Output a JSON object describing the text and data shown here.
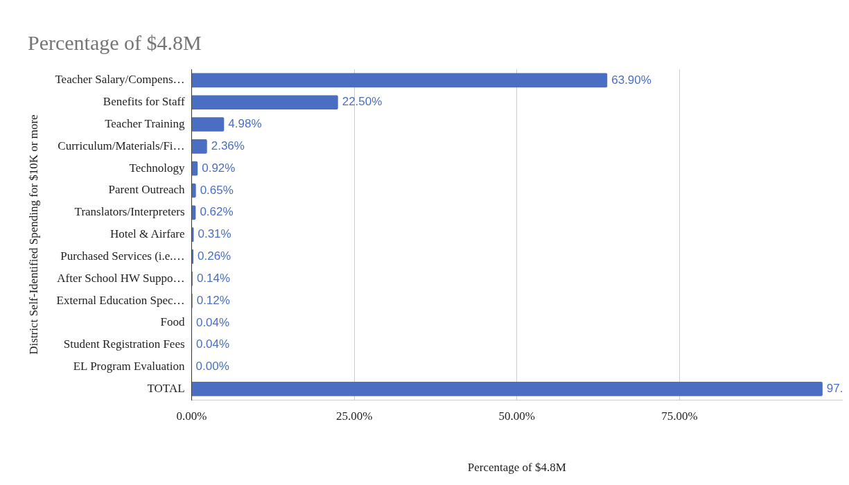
{
  "chart_data": {
    "type": "bar",
    "orientation": "horizontal",
    "title": "Percentage of $4.8M",
    "xlabel": "Percentage of $4.8M",
    "ylabel": "District Self-Identified Spending for $10K or more",
    "categories": [
      "Teacher Salary/Compens…",
      "Benefits for Staff",
      "Teacher Training",
      "Curriculum/Materials/Fi…",
      "Technology",
      "Parent Outreach",
      "Translators/Interpreters",
      "Hotel & Airfare",
      "Purchased Services (i.e.…",
      "After School HW Suppo…",
      "External Education Spec…",
      "Food",
      "Student Registration Fees",
      "EL Program Evaluation",
      "TOTAL"
    ],
    "values": [
      63.9,
      22.5,
      4.98,
      2.36,
      0.92,
      0.65,
      0.62,
      0.31,
      0.26,
      0.14,
      0.12,
      0.04,
      0.04,
      0.0,
      97
    ],
    "value_labels": [
      "63.90%",
      "22.50%",
      "4.98%",
      "2.36%",
      "0.92%",
      "0.65%",
      "0.62%",
      "0.31%",
      "0.26%",
      "0.14%",
      "0.12%",
      "0.04%",
      "0.04%",
      "0.00%",
      "97."
    ],
    "color": "#4a6fc2",
    "xlim": [
      0,
      100
    ],
    "xticks": [
      {
        "value": 0,
        "label": "0.00%"
      },
      {
        "value": 25,
        "label": "25.00%"
      },
      {
        "value": 50,
        "label": "50.00%"
      },
      {
        "value": 75,
        "label": "75.00%"
      }
    ],
    "grid": "x",
    "legend": false
  }
}
